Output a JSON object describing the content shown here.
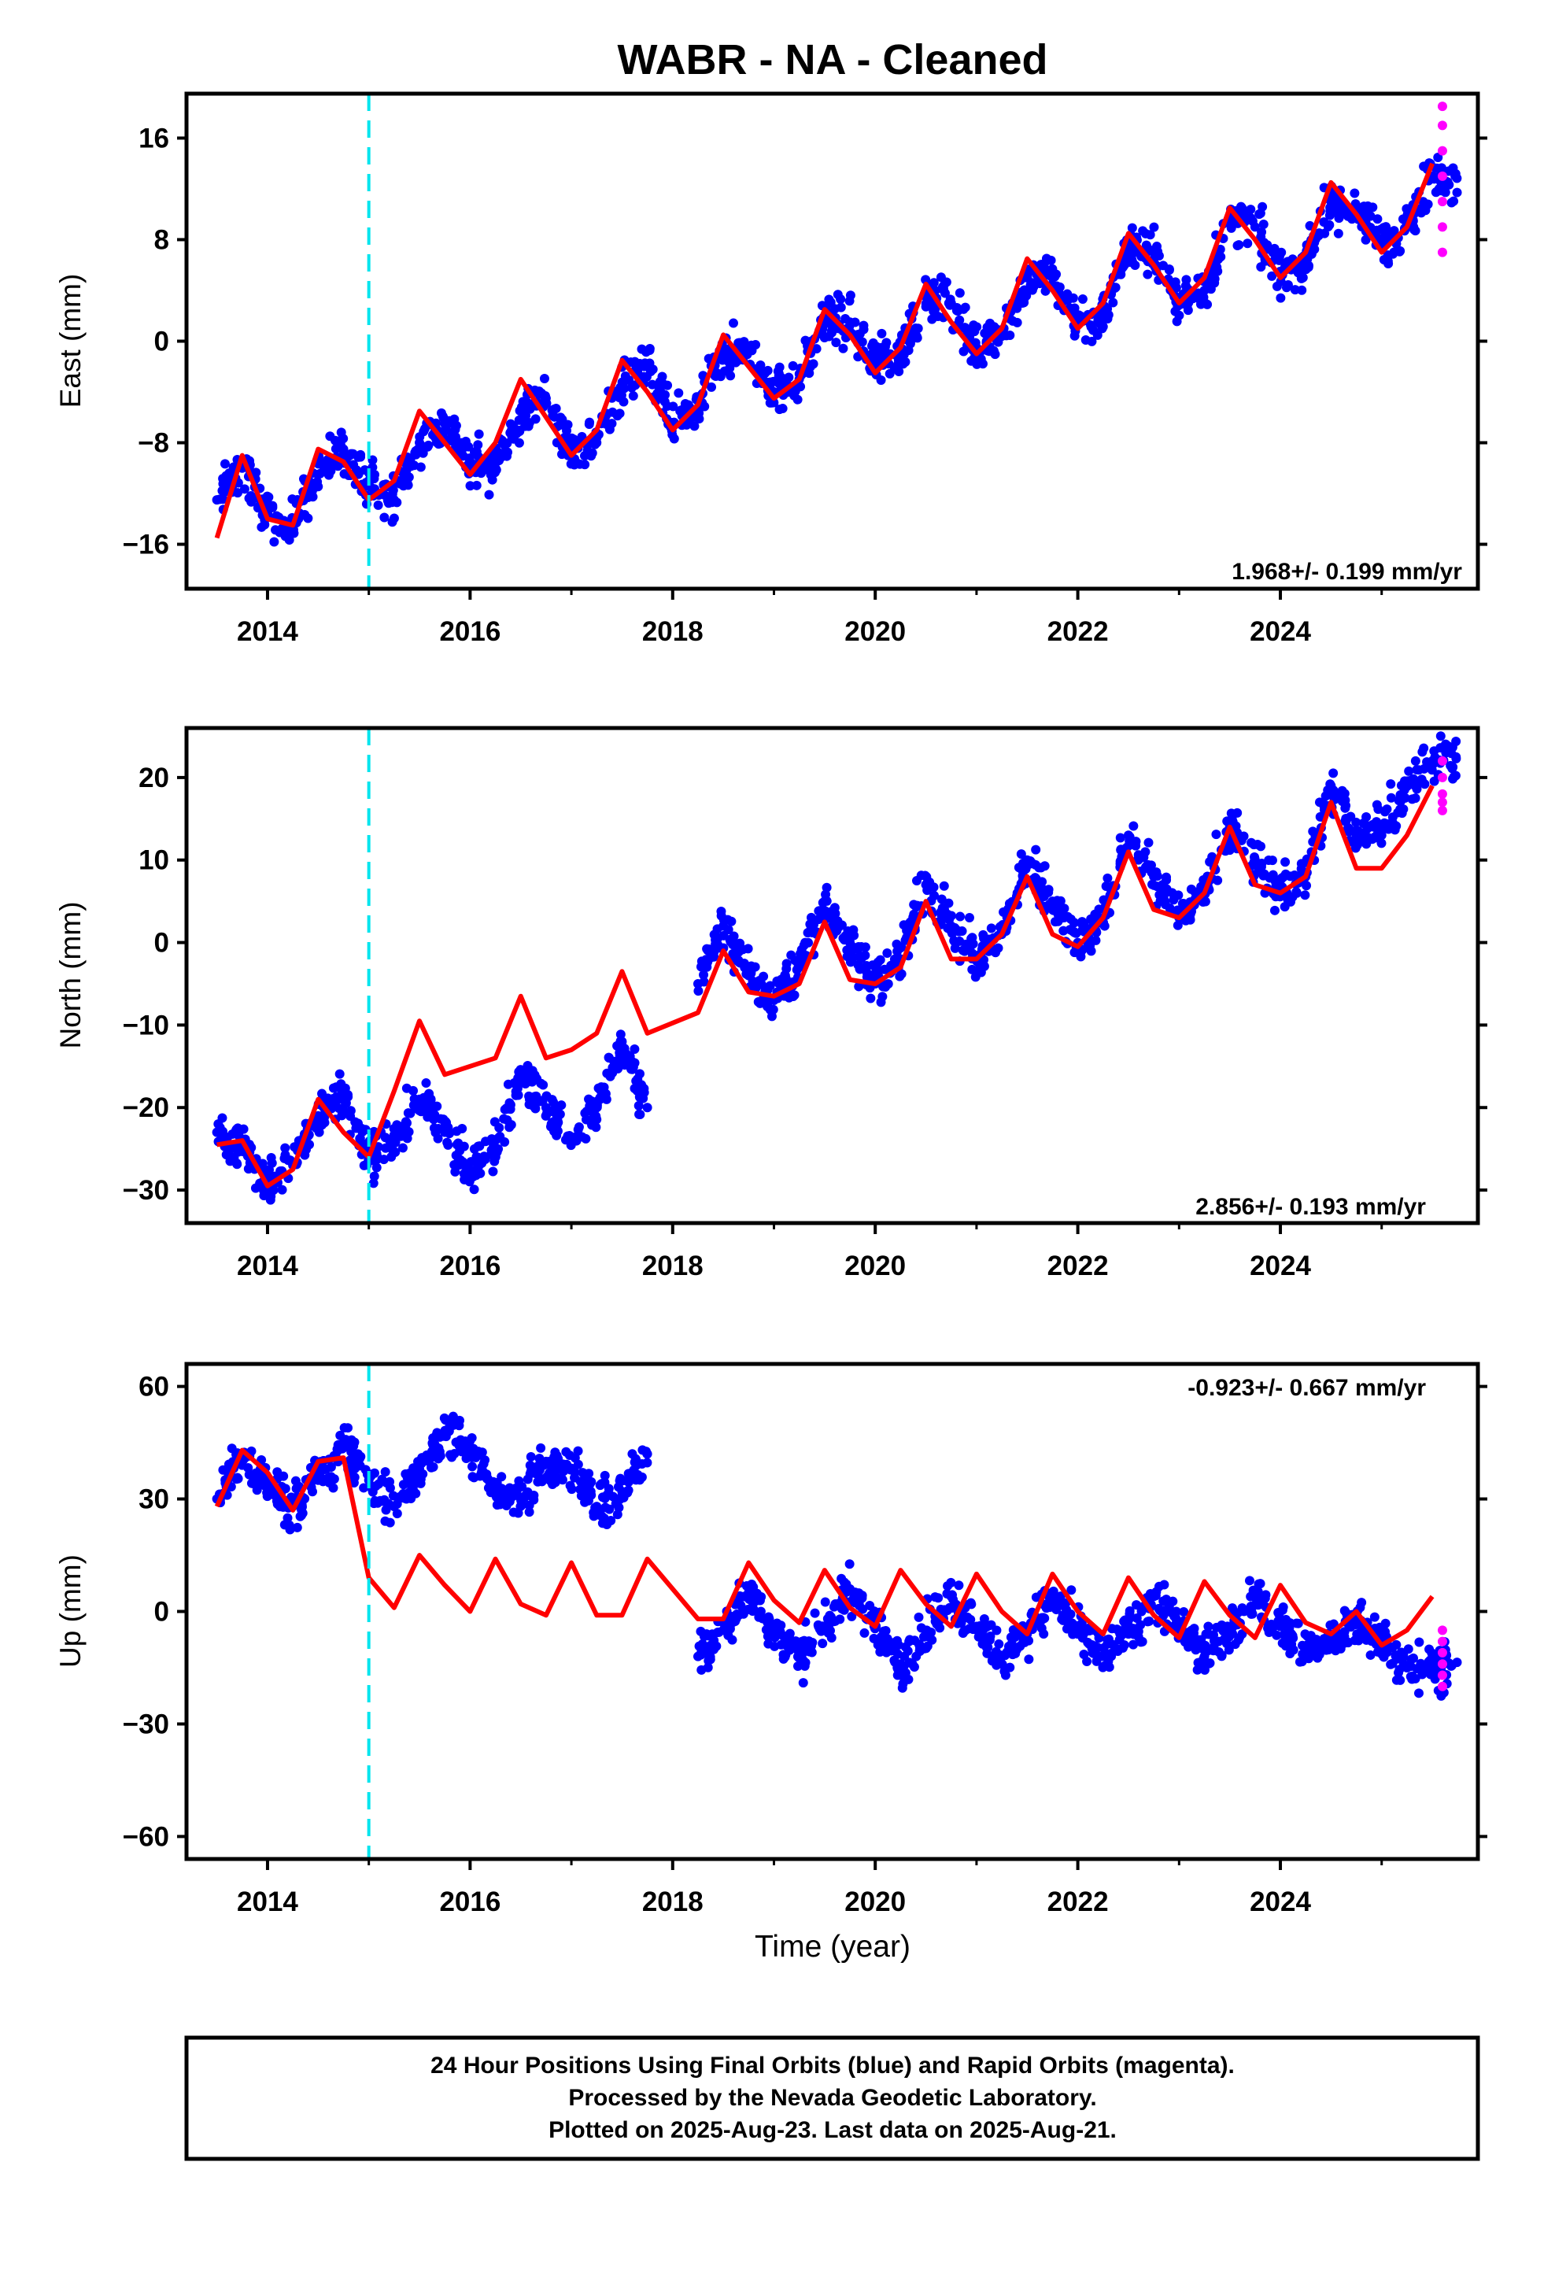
{
  "title": "WABR  - NA - Cleaned",
  "xlabel": "Time (year)",
  "notes": [
    "24 Hour Positions Using Final Orbits (blue) and Rapid Orbits (magenta).",
    "Processed by the Nevada Geodetic Laboratory.",
    "Plotted on 2025-Aug-23. Last data on 2025-Aug-21."
  ],
  "colors": {
    "final": "#0000ff",
    "rapid": "#ff00ff",
    "model": "#ff0000",
    "break": "#00e5ee"
  },
  "chart_data": [
    {
      "type": "scatter",
      "ylabel": "East (mm)",
      "rate_label": "1.968+/- 0.199 mm/yr",
      "xlim": [
        2013.2,
        2025.95
      ],
      "ylim": [
        -19.5,
        19.5
      ],
      "x_ticks": [
        "2014",
        "2016",
        "2018",
        "2020",
        "2022",
        "2024"
      ],
      "y_ticks": [
        "16",
        "8",
        "0",
        "−8",
        "−16"
      ],
      "y_tick_values": [
        16,
        8,
        0,
        -8,
        -16
      ],
      "equipment_change": 2015.0,
      "x": [
        2013.5,
        2013.75,
        2014.0,
        2014.25,
        2014.5,
        2014.75,
        2015.0,
        2015.25,
        2015.5,
        2015.75,
        2016.0,
        2016.25,
        2016.5,
        2016.75,
        2017.0,
        2017.25,
        2017.5,
        2017.75,
        2018.0,
        2018.25,
        2018.5,
        2018.75,
        2019.0,
        2019.25,
        2019.5,
        2019.75,
        2020.0,
        2020.25,
        2020.5,
        2020.75,
        2021.0,
        2021.25,
        2021.5,
        2021.75,
        2022.0,
        2022.25,
        2022.5,
        2022.75,
        2023.0,
        2023.25,
        2023.5,
        2023.75,
        2024.0,
        2024.25,
        2024.5,
        2024.75,
        2025.0,
        2025.25,
        2025.5
      ],
      "series": [
        {
          "name": "Final Orbits",
          "values": [
            -12.5,
            -10.0,
            -13.5,
            -14.5,
            -10.5,
            -8.5,
            -11.0,
            -12.5,
            -8.0,
            -6.5,
            -9.5,
            -10.0,
            -5.5,
            -4.5,
            -8.5,
            -8.0,
            -3.5,
            -2.0,
            -6.5,
            -5.5,
            -1.0,
            -0.5,
            -4.0,
            -3.0,
            1.5,
            1.5,
            -1.5,
            -1.0,
            3.5,
            3.0,
            -0.5,
            0.5,
            5.0,
            5.0,
            1.5,
            2.0,
            7.5,
            7.0,
            3.0,
            4.0,
            9.5,
            9.0,
            5.5,
            6.0,
            11.0,
            10.0,
            8.0,
            9.0,
            13.0
          ]
        },
        {
          "name": "Rapid Orbits",
          "x": [
            2025.6,
            2025.6,
            2025.6,
            2025.6,
            2025.6,
            2025.6,
            2025.6
          ],
          "values": [
            18.5,
            17.0,
            15.0,
            13.0,
            11.0,
            9.0,
            7.0
          ]
        }
      ],
      "model": [
        -15.5,
        -9.0,
        -14.0,
        -14.5,
        -8.5,
        -9.5,
        -12.5,
        -11.0,
        -5.5,
        -8.0,
        -10.5,
        -8.0,
        -3.0,
        -6.0,
        -9.0,
        -7.0,
        -1.5,
        -4.0,
        -7.0,
        -5.0,
        0.5,
        -2.0,
        -4.5,
        -3.0,
        2.5,
        0.5,
        -2.5,
        -0.5,
        4.5,
        1.5,
        -1.0,
        1.0,
        6.5,
        4.0,
        1.0,
        3.0,
        8.5,
        6.0,
        3.0,
        5.0,
        10.5,
        8.0,
        5.0,
        7.0,
        12.5,
        10.0,
        7.0,
        9.0,
        14.0
      ]
    },
    {
      "type": "scatter",
      "ylabel": "North (mm)",
      "rate_label": "2.856+/- 0.193 mm/yr",
      "xlim": [
        2013.2,
        2025.95
      ],
      "ylim": [
        -34,
        26
      ],
      "x_ticks": [
        "2014",
        "2016",
        "2018",
        "2020",
        "2022",
        "2024"
      ],
      "y_ticks": [
        "20",
        "10",
        "0",
        "−10",
        "−20",
        "−30"
      ],
      "y_tick_values": [
        20,
        10,
        0,
        -10,
        -20,
        -30
      ],
      "equipment_change": 2015.0,
      "x": [
        2013.5,
        2013.75,
        2014.0,
        2014.25,
        2014.5,
        2014.75,
        2015.0,
        2015.25,
        2015.5,
        2015.75,
        2016.0,
        2016.25,
        2016.5,
        2016.75,
        2017.0,
        2017.25,
        2017.5,
        2017.75,
        2018.25,
        2018.5,
        2018.75,
        2019.0,
        2019.25,
        2019.5,
        2019.75,
        2020.0,
        2020.25,
        2020.5,
        2020.75,
        2021.0,
        2021.25,
        2021.5,
        2021.75,
        2022.0,
        2022.25,
        2022.5,
        2022.75,
        2023.0,
        2023.25,
        2023.5,
        2023.75,
        2024.0,
        2024.25,
        2024.5,
        2024.75,
        2025.0,
        2025.25,
        2025.5
      ],
      "series": [
        {
          "name": "Final Orbits",
          "values": [
            -23.0,
            -25.0,
            -29.0,
            -27.0,
            -21.0,
            -19.0,
            -26.0,
            -24.0,
            -19.0,
            -23.0,
            -28.0,
            -24.0,
            -16.0,
            -20.0,
            -24.0,
            -20.0,
            -12.0,
            -20.0,
            -5.0,
            2.0,
            -4.0,
            -7.0,
            -3.0,
            5.0,
            0.0,
            -5.0,
            -2.0,
            7.0,
            2.0,
            -2.0,
            1.0,
            10.0,
            5.0,
            0.0,
            3.0,
            13.0,
            8.0,
            3.0,
            6.0,
            14.0,
            10.0,
            6.0,
            8.0,
            19.0,
            13.0,
            13.0,
            19.0,
            22.0
          ]
        },
        {
          "name": "Rapid Orbits",
          "x": [
            2025.6,
            2025.6,
            2025.6,
            2025.6,
            2025.6
          ],
          "values": [
            22.0,
            20.0,
            18.0,
            17.0,
            16.0
          ]
        }
      ],
      "model": [
        -24.5,
        -24.0,
        -29.5,
        -27.5,
        -19.0,
        -23.0,
        -26.0,
        -18.0,
        -9.5,
        -16.0,
        -15.0,
        -14.0,
        -6.5,
        -14.0,
        -13.0,
        -11.0,
        -3.5,
        -11.0,
        -8.5,
        -1.0,
        -6.0,
        -6.5,
        -5.0,
        2.5,
        -4.5,
        -5.0,
        -3.0,
        5.0,
        -2.0,
        -2.0,
        1.0,
        8.0,
        1.0,
        -0.5,
        3.0,
        11.0,
        4.0,
        3.0,
        6.0,
        14.0,
        7.0,
        6.0,
        8.0,
        17.0,
        9.0,
        9.0,
        13.0,
        19.0
      ]
    },
    {
      "type": "scatter",
      "ylabel": "Up (mm)",
      "rate_label": "-0.923+/- 0.667 mm/yr",
      "xlim": [
        2013.2,
        2025.95
      ],
      "ylim": [
        -66,
        66
      ],
      "x_ticks": [
        "2014",
        "2016",
        "2018",
        "2020",
        "2022",
        "2024"
      ],
      "y_ticks": [
        "60",
        "30",
        "0",
        "−30",
        "−60"
      ],
      "y_tick_values": [
        60,
        30,
        0,
        -30,
        -60
      ],
      "equipment_change": 2015.0,
      "x": [
        2013.5,
        2013.75,
        2014.0,
        2014.25,
        2014.5,
        2014.75,
        2015.0,
        2015.25,
        2015.5,
        2015.75,
        2016.0,
        2016.25,
        2016.5,
        2016.75,
        2017.0,
        2017.25,
        2017.5,
        2017.75,
        2018.25,
        2018.5,
        2018.75,
        2019.0,
        2019.25,
        2019.5,
        2019.75,
        2020.0,
        2020.25,
        2020.5,
        2020.75,
        2021.0,
        2021.25,
        2021.5,
        2021.75,
        2022.0,
        2022.25,
        2022.5,
        2022.75,
        2023.0,
        2023.25,
        2023.5,
        2023.75,
        2024.0,
        2024.25,
        2024.5,
        2024.75,
        2025.0,
        2025.25,
        2025.5
      ],
      "series": [
        {
          "name": "Final Orbits",
          "values": [
            30.0,
            42.0,
            35.0,
            28.0,
            35.0,
            45.0,
            35.0,
            28.0,
            38.0,
            48.0,
            42.0,
            32.0,
            30.0,
            40.0,
            38.0,
            28.0,
            32.0,
            42.0,
            -12.0,
            -5.0,
            5.0,
            -5.0,
            -12.0,
            -4.0,
            6.0,
            -4.0,
            -14.0,
            -6.0,
            4.0,
            -4.0,
            -12.0,
            -6.0,
            4.0,
            -6.0,
            -12.0,
            -6.0,
            4.0,
            -4.0,
            -12.0,
            -5.0,
            4.0,
            -4.0,
            -10.0,
            -8.0,
            -3.0,
            -8.0,
            -15.0,
            -15.0
          ]
        },
        {
          "name": "Rapid Orbits",
          "x": [
            2025.6,
            2025.6,
            2025.6,
            2025.6,
            2025.6,
            2025.6
          ],
          "values": [
            -5.0,
            -8.0,
            -11.0,
            -14.0,
            -17.0,
            -20.0
          ]
        }
      ],
      "model": [
        28.0,
        43.0,
        37.0,
        27.0,
        40.0,
        41.0,
        9.0,
        1.0,
        15.0,
        7.0,
        0.0,
        14.0,
        2.0,
        -1.0,
        13.0,
        -1.0,
        -1.0,
        14.0,
        -2.0,
        -2.0,
        13.0,
        3.0,
        -3.0,
        11.0,
        1.0,
        -4.0,
        11.0,
        2.0,
        -4.0,
        10.0,
        0.0,
        -6.0,
        10.0,
        0.0,
        -6.0,
        9.0,
        -1.0,
        -7.0,
        8.0,
        -1.0,
        -7.0,
        7.0,
        -3.0,
        -6.0,
        0.0,
        -9.0,
        -5.0,
        4.0
      ]
    }
  ]
}
